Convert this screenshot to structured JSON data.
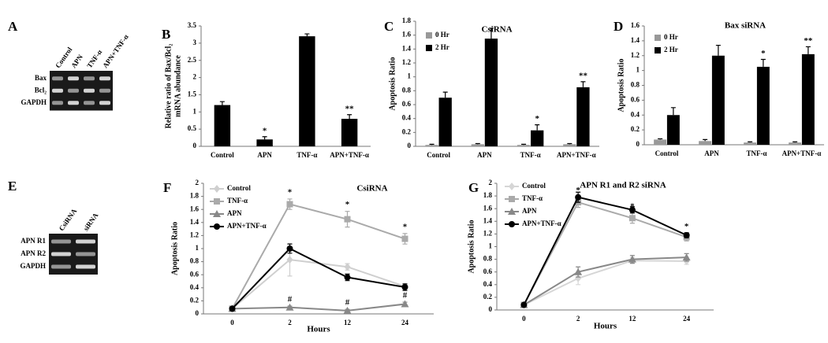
{
  "gels": [
    {
      "panel": "A",
      "lanes": [
        "Control",
        "APN",
        "TNF-α",
        "APN+TNF-α"
      ],
      "rows": [
        "Bax",
        "Bcl₂",
        "GAPDH"
      ]
    },
    {
      "panel": "E",
      "lanes": [
        "CsiRNA",
        "siRNA"
      ],
      "rows": [
        "APN R1",
        "APN R2",
        "GAPDH"
      ]
    }
  ],
  "chart_data": [
    {
      "panel": "B",
      "type": "bar",
      "ylabel": [
        "Relative ratio of Bax/Bcl₂",
        "mRNA abundance"
      ],
      "categories": [
        "Control",
        "APN",
        "TNF-α",
        "APN+TNF-α"
      ],
      "values": [
        1.2,
        0.2,
        3.2,
        0.8
      ],
      "errors": [
        0.1,
        0.08,
        0.07,
        0.12
      ],
      "annotations": [
        null,
        "*",
        null,
        "**"
      ],
      "color": "#000000",
      "ylim": [
        0,
        3.5
      ],
      "yticks": [
        0,
        0.5,
        1,
        1.5,
        2,
        2.5,
        3,
        3.5
      ]
    },
    {
      "panel": "C",
      "type": "bar",
      "title": "CsiRNA",
      "ylabel": [
        "Apoptosis Ratio"
      ],
      "categories": [
        "Control",
        "APN",
        "TNF-α",
        "APN+TNF-α"
      ],
      "series": [
        {
          "name": "0 Hr",
          "color": "#999999",
          "values": [
            0.02,
            0.03,
            0.02,
            0.03
          ],
          "errors": [
            0.01,
            0.01,
            0.01,
            0.01
          ]
        },
        {
          "name": "2 Hr",
          "color": "#000000",
          "values": [
            0.7,
            1.55,
            0.23,
            0.85
          ],
          "errors": [
            0.08,
            0.15,
            0.08,
            0.08
          ],
          "annotations": [
            null,
            null,
            "*",
            "**"
          ]
        }
      ],
      "ylim": [
        0,
        1.8
      ],
      "yticks": [
        0,
        0.2,
        0.4,
        0.6,
        0.8,
        1,
        1.2,
        1.4,
        1.6,
        1.8
      ]
    },
    {
      "panel": "D",
      "type": "bar",
      "title": "Bax siRNA",
      "ylabel": [
        "Apoptosis Ratio"
      ],
      "categories": [
        "Control",
        "APN",
        "TNF-α",
        "APN+TNF-α"
      ],
      "series": [
        {
          "name": "0 Hr",
          "color": "#999999",
          "values": [
            0.07,
            0.05,
            0.03,
            0.03
          ],
          "errors": [
            0.01,
            0.02,
            0.01,
            0.01
          ]
        },
        {
          "name": "2 Hr",
          "color": "#000000",
          "values": [
            0.4,
            1.2,
            1.05,
            1.22
          ],
          "errors": [
            0.1,
            0.14,
            0.1,
            0.1
          ],
          "annotations": [
            null,
            null,
            "*",
            "**"
          ]
        }
      ],
      "ylim": [
        0,
        1.6
      ],
      "yticks": [
        0,
        0.2,
        0.4,
        0.6,
        0.8,
        1,
        1.2,
        1.4,
        1.6
      ]
    },
    {
      "panel": "F",
      "type": "line",
      "title": "CsiRNA",
      "ylabel": [
        "Apoptosis Ratio"
      ],
      "xlabel": "Hours",
      "categories": [
        "0",
        "2",
        "12",
        "24"
      ],
      "series": [
        {
          "name": "Control",
          "color": "#cfcfcf",
          "marker": "diamond",
          "values": [
            0.08,
            0.83,
            0.72,
            0.42
          ],
          "errors": [
            0.01,
            0.25,
            0.05,
            0.03
          ]
        },
        {
          "name": "TNF-α",
          "color": "#aaaaaa",
          "marker": "square",
          "values": [
            0.08,
            1.68,
            1.45,
            1.15
          ],
          "errors": [
            0.01,
            0.08,
            0.12,
            0.08
          ],
          "annotations": [
            null,
            "*",
            "*",
            "*"
          ]
        },
        {
          "name": "APN",
          "color": "#888888",
          "marker": "triangle",
          "values": [
            0.08,
            0.1,
            0.05,
            0.15
          ],
          "errors": [
            0.01,
            0.02,
            0.02,
            0.03
          ],
          "annotations": [
            null,
            "#",
            "#",
            "#"
          ]
        },
        {
          "name": "APN+TNF-α",
          "color": "#000000",
          "marker": "circle",
          "values": [
            0.08,
            1.0,
            0.56,
            0.41
          ],
          "errors": [
            0.01,
            0.07,
            0.05,
            0.05
          ]
        }
      ],
      "ylim": [
        0,
        2
      ],
      "yticks": [
        0,
        0.2,
        0.4,
        0.6,
        0.8,
        1,
        1.2,
        1.4,
        1.6,
        1.8,
        2
      ]
    },
    {
      "panel": "G",
      "type": "line",
      "title": "APN R1 and R2 siRNA",
      "ylabel": [
        "Apoptosis Ratio"
      ],
      "xlabel": "Hours",
      "categories": [
        "0",
        "2",
        "12",
        "24"
      ],
      "series": [
        {
          "name": "Control",
          "color": "#d6d6d6",
          "marker": "diamond",
          "values": [
            0.08,
            0.5,
            0.78,
            0.77
          ],
          "errors": [
            0.01,
            0.1,
            0.05,
            0.05
          ]
        },
        {
          "name": "TNF-α",
          "color": "#aaaaaa",
          "marker": "square",
          "values": [
            0.08,
            1.7,
            1.45,
            1.15
          ],
          "errors": [
            0.01,
            0.08,
            0.08,
            0.06
          ],
          "annotations": [
            null,
            "*",
            "*",
            "*"
          ]
        },
        {
          "name": "APN",
          "color": "#888888",
          "marker": "triangle",
          "values": [
            0.08,
            0.6,
            0.8,
            0.83
          ],
          "errors": [
            0.01,
            0.08,
            0.06,
            0.06
          ]
        },
        {
          "name": "APN+TNF-α",
          "color": "#000000",
          "marker": "circle",
          "values": [
            0.08,
            1.78,
            1.58,
            1.18
          ],
          "errors": [
            0.01,
            0.08,
            0.05,
            0.04
          ]
        }
      ],
      "ylim": [
        0,
        2
      ],
      "yticks": [
        0,
        0.2,
        0.4,
        0.6,
        0.8,
        1,
        1.2,
        1.4,
        1.6,
        1.8,
        2
      ]
    }
  ]
}
